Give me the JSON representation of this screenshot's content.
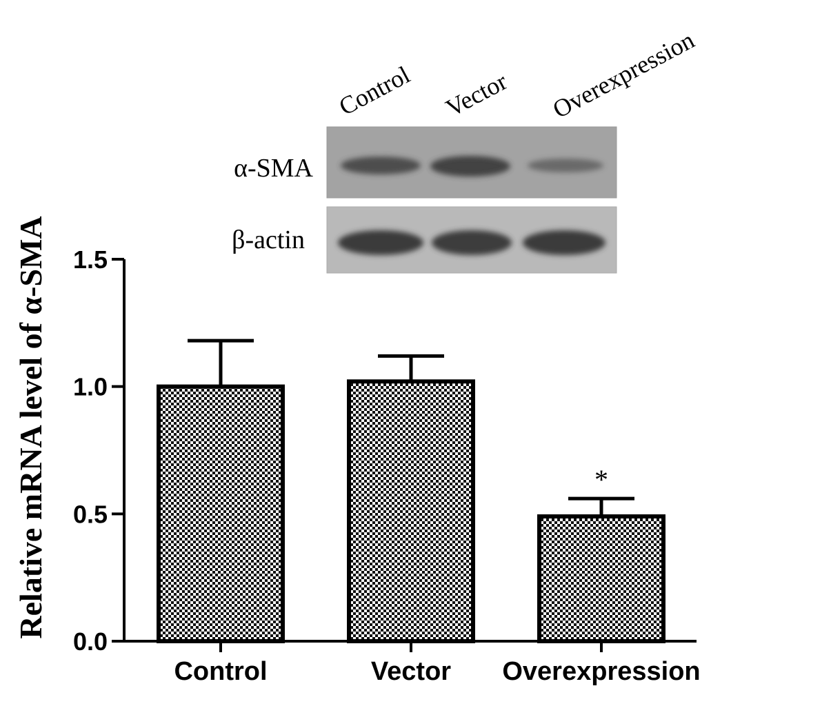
{
  "chart_data": {
    "type": "bar",
    "categories": [
      "Control",
      "Vector",
      "Overexpression"
    ],
    "values": [
      1.0,
      1.02,
      0.49
    ],
    "errors": [
      0.18,
      0.1,
      0.07
    ],
    "significance": [
      "",
      "",
      "*"
    ],
    "title": "",
    "xlabel": "",
    "ylabel": "Relative mRNA level of α-SMA",
    "ylim": [
      0,
      1.5
    ],
    "yticks": [
      "0.0",
      "0.5",
      "1.0",
      "1.5"
    ],
    "ytick_values": [
      0,
      0.5,
      1.0,
      1.5
    ],
    "grid": false,
    "bar_fill": "checkered",
    "colors": {
      "bar_dark": "#111111",
      "bar_light": "#ffffff",
      "axis": "#000000"
    }
  },
  "blot": {
    "lanes": [
      "Control",
      "Vector",
      "Overexpression"
    ],
    "rows": [
      {
        "label": "α-SMA",
        "intensity": [
          0.82,
          0.92,
          0.55
        ]
      },
      {
        "label": "β-actin",
        "intensity": [
          1.0,
          0.98,
          1.0
        ]
      }
    ],
    "colors": {
      "membrane_top": "#a3a3a3",
      "membrane_bottom": "#b9b9b9",
      "band": "#3a3a3a"
    }
  }
}
